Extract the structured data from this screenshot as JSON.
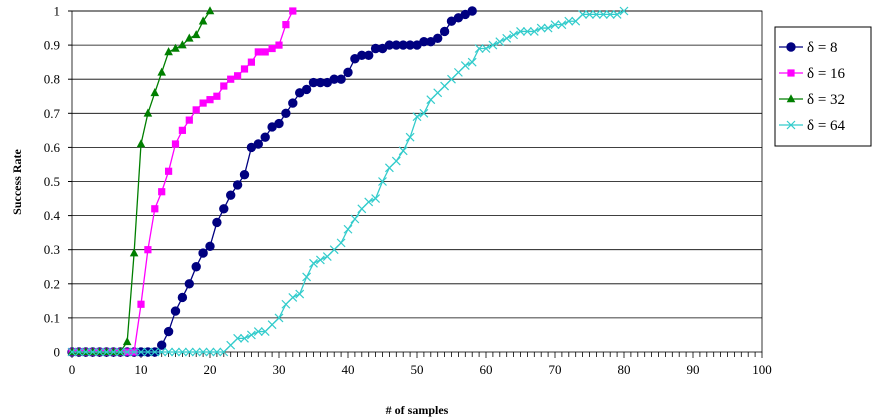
{
  "chart_data": {
    "type": "line",
    "title": "",
    "xlabel": "# of samples",
    "ylabel": "Success Rate",
    "xlim": [
      0,
      100
    ],
    "ylim": [
      0,
      1
    ],
    "xticks": [
      0,
      10,
      20,
      30,
      40,
      50,
      60,
      70,
      80,
      90,
      100
    ],
    "yticks": [
      0,
      0.1,
      0.2,
      0.3,
      0.4,
      0.5,
      0.6,
      0.7,
      0.8,
      0.9,
      1
    ],
    "grid": "horizontal",
    "legend_position": "right",
    "series": [
      {
        "name": "δ = 8",
        "color": "#000080",
        "marker": "circle",
        "x": [
          0,
          1,
          2,
          3,
          4,
          5,
          6,
          7,
          8,
          9,
          10,
          11,
          12,
          13,
          14,
          15,
          16,
          17,
          18,
          19,
          20,
          21,
          22,
          23,
          24,
          25,
          26,
          27,
          28,
          29,
          30,
          31,
          32,
          33,
          34,
          35,
          36,
          37,
          38,
          39,
          40,
          41,
          42,
          43,
          44,
          45,
          46,
          47,
          48,
          49,
          50,
          51,
          52,
          53,
          54,
          55,
          56,
          57,
          58
        ],
        "y": [
          0,
          0,
          0,
          0,
          0,
          0,
          0,
          0,
          0,
          0,
          0,
          0,
          0,
          0.02,
          0.06,
          0.12,
          0.16,
          0.2,
          0.25,
          0.29,
          0.31,
          0.38,
          0.42,
          0.46,
          0.49,
          0.52,
          0.6,
          0.61,
          0.63,
          0.66,
          0.67,
          0.7,
          0.73,
          0.76,
          0.77,
          0.79,
          0.79,
          0.79,
          0.8,
          0.8,
          0.82,
          0.86,
          0.87,
          0.87,
          0.89,
          0.89,
          0.9,
          0.9,
          0.9,
          0.9,
          0.9,
          0.91,
          0.91,
          0.92,
          0.94,
          0.97,
          0.98,
          0.99,
          1
        ]
      },
      {
        "name": "δ = 16",
        "color": "#FF00FF",
        "marker": "square",
        "x": [
          0,
          1,
          2,
          3,
          4,
          5,
          6,
          7,
          8,
          9,
          10,
          11,
          12,
          13,
          14,
          15,
          16,
          17,
          18,
          19,
          20,
          21,
          22,
          23,
          24,
          25,
          26,
          27,
          28,
          29,
          30,
          31,
          32
        ],
        "y": [
          0,
          0,
          0,
          0,
          0,
          0,
          0,
          0,
          0,
          0,
          0.14,
          0.3,
          0.42,
          0.47,
          0.53,
          0.61,
          0.65,
          0.68,
          0.71,
          0.73,
          0.74,
          0.75,
          0.78,
          0.8,
          0.81,
          0.83,
          0.85,
          0.88,
          0.88,
          0.89,
          0.9,
          0.96,
          1
        ]
      },
      {
        "name": "δ = 32",
        "color": "#007F00",
        "marker": "triangle",
        "x": [
          0,
          1,
          2,
          3,
          4,
          5,
          6,
          7,
          8,
          9,
          10,
          11,
          12,
          13,
          14,
          15,
          16,
          17,
          18,
          19,
          20
        ],
        "y": [
          0,
          0,
          0,
          0,
          0,
          0,
          0,
          0,
          0.03,
          0.29,
          0.61,
          0.7,
          0.76,
          0.82,
          0.88,
          0.89,
          0.9,
          0.92,
          0.93,
          0.97,
          1
        ]
      },
      {
        "name": "δ = 64",
        "color": "#33CCCC",
        "marker": "x",
        "x": [
          0,
          1,
          2,
          3,
          4,
          5,
          6,
          7,
          8,
          9,
          10,
          11,
          12,
          13,
          14,
          15,
          16,
          17,
          18,
          19,
          20,
          21,
          22,
          23,
          24,
          25,
          26,
          27,
          28,
          29,
          30,
          31,
          32,
          33,
          34,
          35,
          36,
          37,
          38,
          39,
          40,
          41,
          42,
          43,
          44,
          45,
          46,
          47,
          48,
          49,
          50,
          51,
          52,
          53,
          54,
          55,
          56,
          57,
          58,
          59,
          60,
          61,
          62,
          63,
          64,
          65,
          66,
          67,
          68,
          69,
          70,
          71,
          72,
          73,
          74,
          75,
          76,
          77,
          78,
          79,
          80
        ],
        "y": [
          0,
          0,
          0,
          0,
          0,
          0,
          0,
          0,
          0,
          0,
          0,
          0,
          0,
          0,
          0,
          0,
          0,
          0,
          0,
          0,
          0,
          0,
          0,
          0.02,
          0.04,
          0.04,
          0.05,
          0.06,
          0.06,
          0.08,
          0.1,
          0.14,
          0.16,
          0.17,
          0.22,
          0.26,
          0.27,
          0.28,
          0.3,
          0.32,
          0.36,
          0.39,
          0.42,
          0.44,
          0.45,
          0.5,
          0.54,
          0.56,
          0.59,
          0.63,
          0.69,
          0.7,
          0.74,
          0.76,
          0.78,
          0.8,
          0.82,
          0.84,
          0.85,
          0.89,
          0.89,
          0.9,
          0.91,
          0.92,
          0.93,
          0.94,
          0.94,
          0.94,
          0.95,
          0.95,
          0.96,
          0.96,
          0.97,
          0.97,
          0.99,
          0.99,
          0.99,
          0.99,
          0.99,
          0.99,
          1
        ]
      }
    ]
  }
}
